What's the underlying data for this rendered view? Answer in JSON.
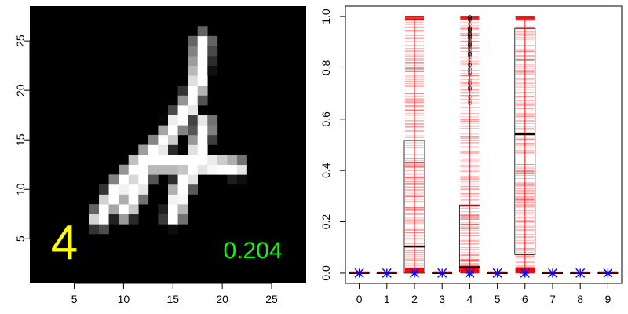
{
  "chart_data": [
    {
      "type": "heatmap",
      "title": "",
      "xlabel": "",
      "ylabel": "",
      "xlim": [
        0.5,
        28.5
      ],
      "ylim": [
        0.5,
        28.5
      ],
      "x_ticks": [
        "5",
        "10",
        "15",
        "20",
        "25"
      ],
      "y_ticks": [
        "5",
        "10",
        "15",
        "20",
        "25"
      ],
      "colormap": "grayscale",
      "background_color": "#000000",
      "strokes": [
        [
          [
            18,
            25
          ],
          [
            17.6,
            21
          ],
          [
            16.7,
            18.5
          ],
          [
            15.2,
            16.4
          ],
          [
            14.1,
            14.8
          ],
          [
            12.3,
            13.2
          ],
          [
            9.8,
            10.6
          ],
          [
            8.4,
            8.5
          ],
          [
            7.6,
            7
          ]
        ],
        [
          [
            11.6,
            12.7
          ],
          [
            15.2,
            12.7
          ],
          [
            18.8,
            12.5
          ],
          [
            21.5,
            12.2
          ]
        ],
        [
          [
            18.2,
            16.5
          ],
          [
            17.6,
            14
          ],
          [
            16.6,
            11.4
          ],
          [
            15.7,
            9.8
          ],
          [
            15.1,
            7.3
          ]
        ],
        [
          [
            12.2,
            11.8
          ],
          [
            11.2,
            9.5
          ],
          [
            10.1,
            7.8
          ]
        ]
      ],
      "annotations": [
        {
          "text": "4",
          "color": "#ffff00"
        },
        {
          "text": "0.204",
          "color": "#00ff00"
        }
      ]
    },
    {
      "type": "box",
      "title": "",
      "xlabel": "",
      "ylabel": "",
      "categories": [
        "0",
        "1",
        "2",
        "3",
        "4",
        "5",
        "6",
        "7",
        "8",
        "9"
      ],
      "ylim": [
        0,
        1
      ],
      "y_ticks": [
        "0.0",
        "0.2",
        "0.4",
        "0.6",
        "0.8",
        "1.0"
      ],
      "boxes": [
        {
          "q1": 0,
          "median": 0,
          "q3": 0
        },
        {
          "q1": 0,
          "median": 0,
          "q3": 0
        },
        {
          "q1": 0.0,
          "median": 0.103,
          "q3": 0.517
        },
        {
          "q1": 0,
          "median": 0,
          "q3": 0
        },
        {
          "q1": 0.004,
          "median": 0.023,
          "q3": 0.265
        },
        {
          "q1": 0,
          "median": 0,
          "q3": 0
        },
        {
          "q1": 0.072,
          "median": 0.541,
          "q3": 0.954
        },
        {
          "q1": 0,
          "median": 0,
          "q3": 0
        },
        {
          "q1": 0,
          "median": 0,
          "q3": 0
        },
        {
          "q1": 0,
          "median": 0,
          "q3": 0
        }
      ],
      "samples_color": "#ff0000",
      "outlier_class": "4",
      "marker_color": "#0000ff",
      "marker_values": [
        0,
        0,
        0,
        0,
        0,
        0,
        0,
        0,
        0,
        0
      ]
    }
  ]
}
